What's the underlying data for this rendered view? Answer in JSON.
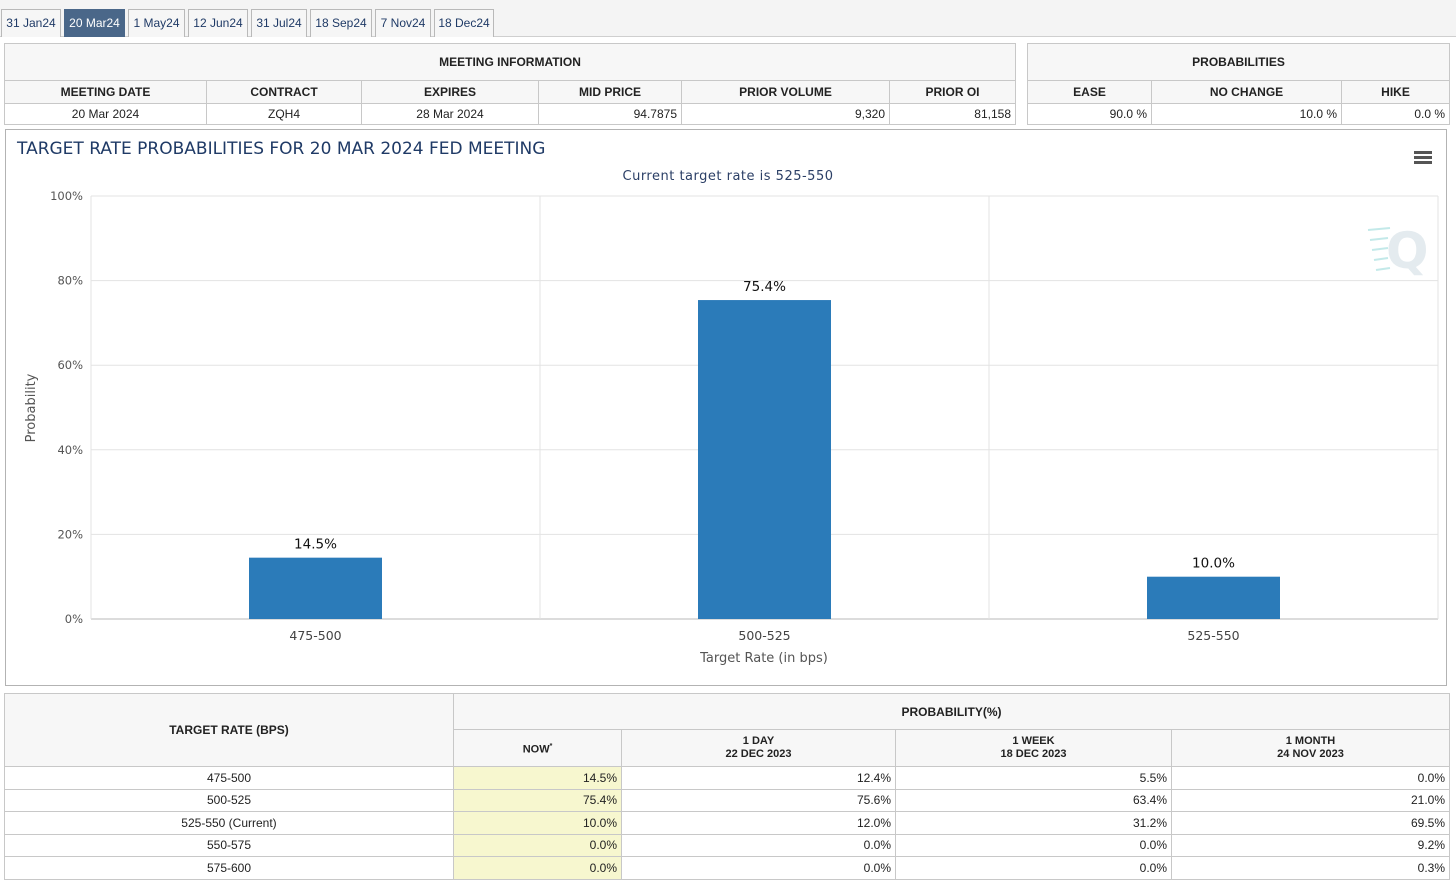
{
  "tabs": [
    {
      "label": "31 Jan24",
      "active": false
    },
    {
      "label": "20 Mar24",
      "active": true
    },
    {
      "label": "1 May24",
      "active": false
    },
    {
      "label": "12 Jun24",
      "active": false
    },
    {
      "label": "31 Jul24",
      "active": false
    },
    {
      "label": "18 Sep24",
      "active": false
    },
    {
      "label": "7 Nov24",
      "active": false
    },
    {
      "label": "18 Dec24",
      "active": false
    }
  ],
  "meeting_info": {
    "heading": "MEETING INFORMATION",
    "columns": [
      "MEETING DATE",
      "CONTRACT",
      "EXPIRES",
      "MID PRICE",
      "PRIOR VOLUME",
      "PRIOR OI"
    ],
    "values": [
      "20 Mar 2024",
      "ZQH4",
      "28 Mar 2024",
      "94.7875",
      "9,320",
      "81,158"
    ]
  },
  "probabilities": {
    "heading": "PROBABILITIES",
    "columns": [
      "EASE",
      "NO CHANGE",
      "HIKE"
    ],
    "values": [
      "90.0 %",
      "10.0 %",
      "0.0 %"
    ]
  },
  "chart": {
    "menu_icon": "hamburger-menu-icon",
    "watermark_icon": "cme-q-logo-icon",
    "bar_color": "#2b7bb9"
  },
  "chart_data": {
    "type": "bar",
    "title": "TARGET RATE PROBABILITIES FOR 20 MAR 2024 FED MEETING",
    "subtitle": "Current target rate is 525-550",
    "xlabel": "Target Rate (in bps)",
    "ylabel": "Probability",
    "categories": [
      "475-500",
      "500-525",
      "525-550"
    ],
    "values": [
      14.5,
      75.4,
      10.0
    ],
    "value_labels": [
      "14.5%",
      "75.4%",
      "10.0%"
    ],
    "ylim": [
      0,
      100
    ],
    "yticks": [
      "0%",
      "20%",
      "40%",
      "60%",
      "80%",
      "100%"
    ],
    "grid": true,
    "legend": "none"
  },
  "rate_table": {
    "target_header": "TARGET RATE (BPS)",
    "prob_header": "PROBABILITY(%)",
    "columns": [
      {
        "line1": "NOW",
        "line2": ""
      },
      {
        "line1": "1 DAY",
        "line2": "22 DEC 2023"
      },
      {
        "line1": "1 WEEK",
        "line2": "18 DEC 2023"
      },
      {
        "line1": "1 MONTH",
        "line2": "24 NOV 2023"
      }
    ],
    "rows": [
      {
        "rate": "475-500",
        "values": [
          "14.5%",
          "12.4%",
          "5.5%",
          "0.0%"
        ]
      },
      {
        "rate": "500-525",
        "values": [
          "75.4%",
          "75.6%",
          "63.4%",
          "21.0%"
        ]
      },
      {
        "rate": "525-550 (Current)",
        "values": [
          "10.0%",
          "12.0%",
          "31.2%",
          "69.5%"
        ]
      },
      {
        "rate": "550-575",
        "values": [
          "0.0%",
          "0.0%",
          "0.0%",
          "9.2%"
        ]
      },
      {
        "rate": "575-600",
        "values": [
          "0.0%",
          "0.0%",
          "0.0%",
          "0.3%"
        ]
      }
    ]
  }
}
